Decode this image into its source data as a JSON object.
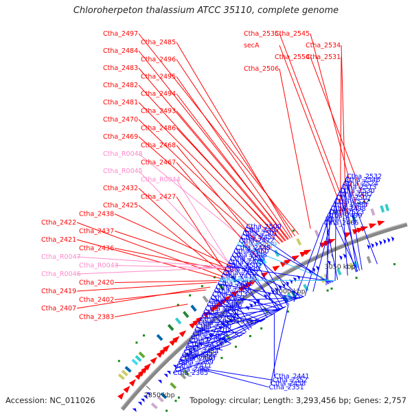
{
  "title": "Chloroherpeton thalassium ATCC 35110, complete genome",
  "footer": {
    "accession": "Accession: NC_011026",
    "topology": "Topology: circular; Length: 3,293,456 bp; Genes: 2,757"
  },
  "colors": {
    "forward": "#ff0000",
    "reverse": "#0000ff",
    "rna": "#ff88cc",
    "rna_rev": "#33bbff",
    "backbone": "#888888"
  },
  "ticks": [
    {
      "label": "2850 kbp",
      "angle": 222.5
    },
    {
      "label": "2900 kbp",
      "angle": 228.5
    },
    {
      "label": "2950 kbp",
      "angle": 234.5
    },
    {
      "label": "3000 kbp",
      "angle": 240.5
    },
    {
      "label": "3050 kbp",
      "angle": 246.5
    }
  ],
  "left_labels": [
    {
      "text": "Ctha_2497",
      "angle": 244.3
    },
    {
      "text": "Ctha_2485",
      "angle": 243.6
    },
    {
      "text": "Ctha_2484",
      "angle": 243.2
    },
    {
      "text": "Ctha_2496",
      "angle": 243.9
    },
    {
      "text": "Ctha_2483",
      "angle": 242.8
    },
    {
      "text": "Ctha_2495",
      "angle": 243.4
    },
    {
      "text": "Ctha_2482",
      "angle": 242.5
    },
    {
      "text": "Ctha_2494",
      "angle": 243.1
    },
    {
      "text": "Ctha_2481",
      "angle": 242.2
    },
    {
      "text": "Ctha_2493",
      "angle": 242.9
    },
    {
      "text": "Ctha_2470",
      "angle": 241.3
    },
    {
      "text": "Ctha_2486",
      "angle": 242.6
    },
    {
      "text": "Ctha_2469",
      "angle": 240.9
    },
    {
      "text": "Ctha_2468",
      "angle": 240.5
    },
    {
      "text": "Ctha_R0048",
      "angle": 240.2
    },
    {
      "text": "Ctha_2467",
      "angle": 239.6
    },
    {
      "text": "Ctha_R0045",
      "angle": 237.1
    },
    {
      "text": "Ctha_R0044",
      "angle": 236.9
    },
    {
      "text": "Ctha_2432",
      "angle": 236.5
    },
    {
      "text": "Ctha_2427",
      "angle": 236.2
    },
    {
      "text": "Ctha_2425",
      "angle": 236.0
    },
    {
      "text": "Ctha_2438",
      "angle": 237.3
    },
    {
      "text": "Ctha_2422",
      "angle": 235.8
    },
    {
      "text": "Ctha_2437",
      "angle": 237.0
    },
    {
      "text": "Ctha_2421",
      "angle": 235.5
    },
    {
      "text": "Ctha_2436",
      "angle": 236.8
    },
    {
      "text": "Ctha_R0047",
      "angle": 237.5
    },
    {
      "text": "Ctha_R0043",
      "angle": 237.4
    },
    {
      "text": "Ctha_R0046",
      "angle": 237.6
    },
    {
      "text": "Ctha_2420",
      "angle": 235.2
    },
    {
      "text": "Ctha_2419",
      "angle": 234.9
    },
    {
      "text": "Ctha_2402",
      "angle": 233.6
    },
    {
      "text": "Ctha_2407",
      "angle": 234.1
    },
    {
      "text": "Ctha_2383",
      "angle": 231.3
    },
    {
      "text": "Ctha_2535",
      "angle": 249.6
    },
    {
      "text": "Ctha_2545",
      "angle": 250.6
    },
    {
      "text": "Ctha_2534",
      "angle": 249.4
    },
    {
      "text": "secA",
      "angle": 249.2
    },
    {
      "text": "Ctha_2554",
      "angle": 251.6
    },
    {
      "text": "Ctha_2531",
      "angle": 248.8
    },
    {
      "text": "Ctha_2506",
      "angle": 245.6
    }
  ],
  "right_labels": [
    {
      "text": "Ctha_2532",
      "angle": 248.9
    },
    {
      "text": "Ctha_2546",
      "angle": 250.7
    },
    {
      "text": "Ctha_2524",
      "angle": 248.3
    },
    {
      "text": "Ctha_2513",
      "angle": 247.2
    },
    {
      "text": "Ctha_2530",
      "angle": 248.6
    },
    {
      "text": "Ctha_2487",
      "angle": 243.0
    },
    {
      "text": "Ctha_2507",
      "angle": 245.7
    },
    {
      "text": "Ctha_2522",
      "angle": 248.2
    },
    {
      "text": "Ctha_2480",
      "angle": 242.0
    },
    {
      "text": "Ctha_2498",
      "angle": 244.6
    },
    {
      "text": "Ctha_2523",
      "angle": 248.4
    },
    {
      "text": "Ctha_2499",
      "angle": 244.8
    },
    {
      "text": "trpA",
      "angle": 246.0
    },
    {
      "text": "Ctha_2466",
      "angle": 240.6
    },
    {
      "text": "Ctha_2500",
      "angle": 245.0
    },
    {
      "text": "Ctha_2457",
      "angle": 239.8
    },
    {
      "text": "Ctha_2501",
      "angle": 245.2
    },
    {
      "text": "Ctha_2451",
      "angle": 239.2
    },
    {
      "text": "Ctha_2472",
      "angle": 241.5
    },
    {
      "text": "Ctha_R0049",
      "angle": 245.4
    },
    {
      "text": "Ctha_2445",
      "angle": 238.6
    },
    {
      "text": "Ctha_2460",
      "angle": 240.0
    },
    {
      "text": "Ctha_2448",
      "angle": 238.9
    },
    {
      "text": "Ctha_2435",
      "angle": 237.2
    },
    {
      "text": "Ctha_2475",
      "angle": 241.8
    },
    {
      "text": "Ctha_2502",
      "angle": 245.5
    },
    {
      "text": "Ctha_2439",
      "angle": 237.8
    },
    {
      "text": "Ctha_2452",
      "angle": 239.3
    },
    {
      "text": "Ctha_2418",
      "angle": 235.1
    },
    {
      "text": "Ctha_R0050",
      "angle": 245.8
    },
    {
      "text": "Ctha_2471",
      "angle": 241.4
    },
    {
      "text": "Ctha_2417",
      "angle": 234.8
    },
    {
      "text": "Ctha_2449",
      "angle": 239.0
    },
    {
      "text": "Ctha_2413",
      "angle": 234.4
    },
    {
      "text": "Ctha_2431",
      "angle": 236.5
    },
    {
      "text": "Ctha_2473",
      "angle": 241.6
    },
    {
      "text": "Ctha_2446",
      "angle": 238.7
    },
    {
      "text": "Ctha_2401",
      "angle": 233.5
    },
    {
      "text": "Ctha_2430",
      "angle": 236.4
    },
    {
      "text": "Ctha_2474",
      "angle": 241.7
    },
    {
      "text": "Ctha_2450",
      "angle": 239.1
    },
    {
      "text": "Ctha_2433",
      "angle": 236.7
    },
    {
      "text": "Ctha_2390",
      "angle": 232.3
    },
    {
      "text": "Ctha_2410",
      "angle": 234.2
    },
    {
      "text": "Ctha_2478",
      "angle": 241.9
    },
    {
      "text": "Ctha_2453",
      "angle": 239.4
    },
    {
      "text": "Ctha_2381",
      "angle": 231.1
    },
    {
      "text": "Ctha_2434",
      "angle": 236.9
    },
    {
      "text": "Ctha_2404",
      "angle": 233.8
    },
    {
      "text": "Ctha_2454",
      "angle": 239.5
    },
    {
      "text": "Ctha_2372",
      "angle": 230.3
    },
    {
      "text": "Ctha_2440",
      "angle": 238.0
    },
    {
      "text": "Ctha_2389",
      "angle": 232.2
    },
    {
      "text": "Ctha_2411",
      "angle": 234.3
    },
    {
      "text": "Ctha_2455",
      "angle": 239.6
    },
    {
      "text": "Ctha_2365",
      "angle": 229.6
    },
    {
      "text": "Ctha_2441",
      "angle": 238.1
    },
    {
      "text": "Ctha_2352",
      "angle": 228.0
    },
    {
      "text": "Ctha_2458",
      "angle": 239.9
    },
    {
      "text": "Ctha_2351",
      "angle": 227.9
    }
  ]
}
